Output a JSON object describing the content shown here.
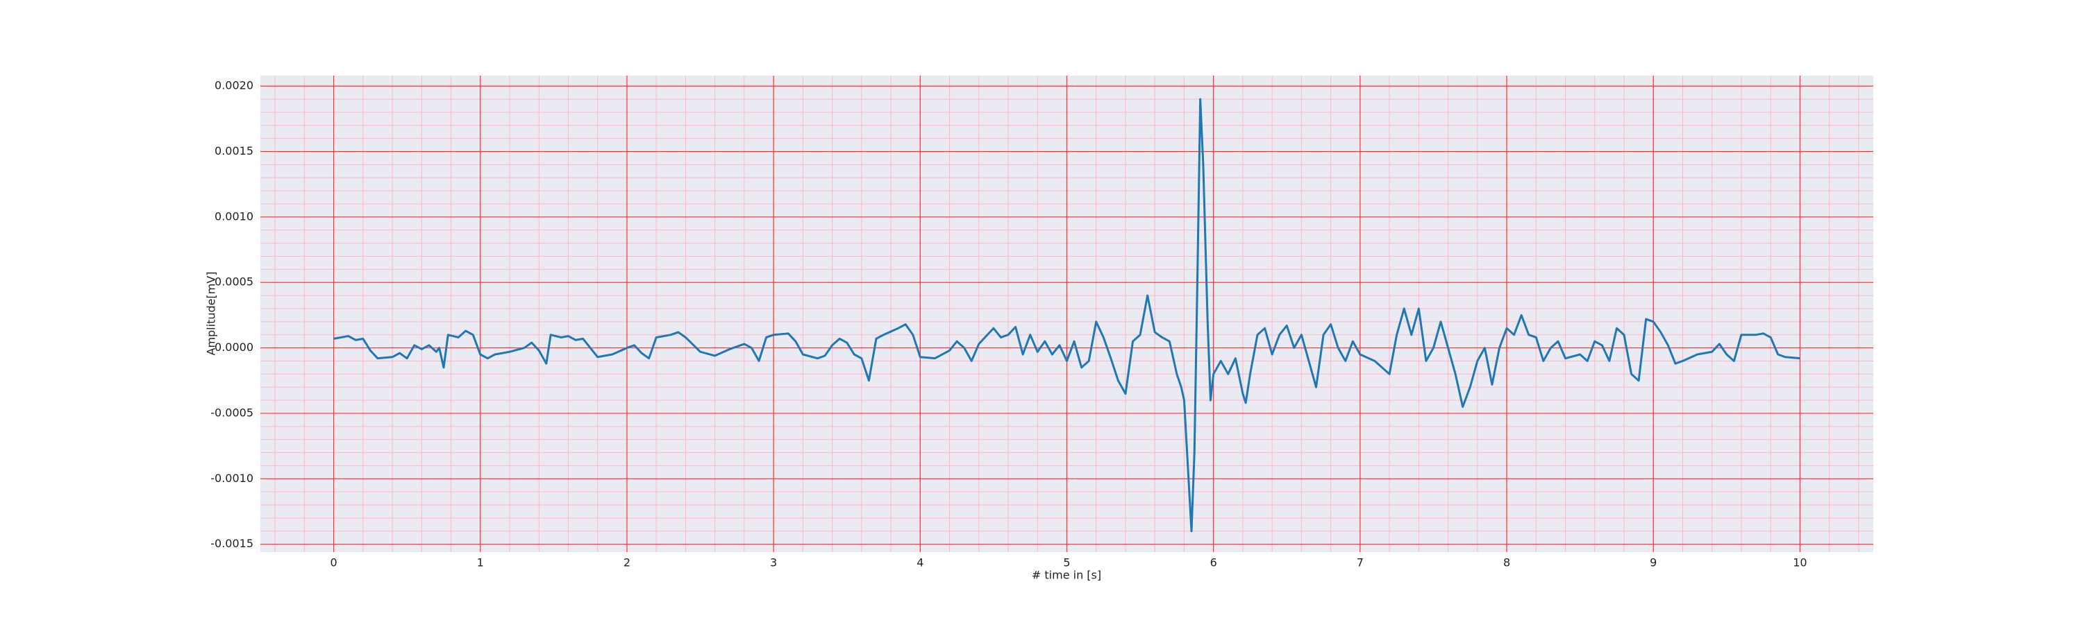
{
  "chart_data": {
    "type": "line",
    "xlabel": "# time in [s]",
    "ylabel": "Amplitude[mV]",
    "x": [
      0,
      0.1,
      0.15,
      0.2,
      0.25,
      0.3,
      0.4,
      0.45,
      0.5,
      0.55,
      0.6,
      0.65,
      0.7,
      0.72,
      0.75,
      0.78,
      0.85,
      0.9,
      0.95,
      1.0,
      1.05,
      1.1,
      1.2,
      1.3,
      1.35,
      1.4,
      1.45,
      1.48,
      1.55,
      1.6,
      1.65,
      1.7,
      1.75,
      1.8,
      1.9,
      2.0,
      2.05,
      2.1,
      2.15,
      2.2,
      2.3,
      2.35,
      2.4,
      2.5,
      2.6,
      2.7,
      2.8,
      2.85,
      2.9,
      2.95,
      3.0,
      3.1,
      3.15,
      3.2,
      3.3,
      3.35,
      3.4,
      3.45,
      3.5,
      3.55,
      3.6,
      3.65,
      3.7,
      3.75,
      3.85,
      3.9,
      3.95,
      4.0,
      4.1,
      4.2,
      4.25,
      4.3,
      4.35,
      4.4,
      4.5,
      4.55,
      4.6,
      4.65,
      4.7,
      4.75,
      4.8,
      4.85,
      4.9,
      4.95,
      5.0,
      5.05,
      5.1,
      5.15,
      5.2,
      5.25,
      5.3,
      5.35,
      5.4,
      5.45,
      5.5,
      5.55,
      5.6,
      5.65,
      5.7,
      5.75,
      5.78,
      5.8,
      5.83,
      5.85,
      5.87,
      5.89,
      5.91,
      5.93,
      5.96,
      5.98,
      6.0,
      6.05,
      6.1,
      6.15,
      6.2,
      6.22,
      6.25,
      6.3,
      6.35,
      6.4,
      6.45,
      6.5,
      6.55,
      6.6,
      6.65,
      6.7,
      6.75,
      6.8,
      6.85,
      6.9,
      6.95,
      7.0,
      7.1,
      7.2,
      7.25,
      7.3,
      7.35,
      7.4,
      7.45,
      7.5,
      7.55,
      7.6,
      7.65,
      7.7,
      7.75,
      7.8,
      7.85,
      7.9,
      7.95,
      8.0,
      8.05,
      8.1,
      8.15,
      8.2,
      8.25,
      8.3,
      8.35,
      8.4,
      8.5,
      8.55,
      8.6,
      8.65,
      8.7,
      8.75,
      8.8,
      8.85,
      8.9,
      8.95,
      9.0,
      9.05,
      9.1,
      9.15,
      9.2,
      9.3,
      9.4,
      9.45,
      9.5,
      9.55,
      9.6,
      9.7,
      9.75,
      9.8,
      9.85,
      9.9,
      10.0
    ],
    "series": [
      {
        "color": "#1f77b4",
        "values": [
          7e-05,
          9e-05,
          6e-05,
          7e-05,
          -2e-05,
          -8e-05,
          -7e-05,
          -4e-05,
          -8e-05,
          2e-05,
          -1e-05,
          2e-05,
          -3e-05,
          0.0,
          -0.00015,
          0.0001,
          8e-05,
          0.00013,
          0.0001,
          -5e-05,
          -8e-05,
          -5e-05,
          -3e-05,
          0.0,
          4e-05,
          -2e-05,
          -0.00012,
          0.0001,
          8e-05,
          9e-05,
          6e-05,
          7e-05,
          0.0,
          -7e-05,
          -5e-05,
          0.0,
          2e-05,
          -4e-05,
          -8e-05,
          8e-05,
          0.0001,
          0.00012,
          8e-05,
          -3e-05,
          -6e-05,
          -1e-05,
          3e-05,
          0.0,
          -0.0001,
          8e-05,
          0.0001,
          0.00011,
          5e-05,
          -5e-05,
          -8e-05,
          -6e-05,
          2e-05,
          7e-05,
          4e-05,
          -5e-05,
          -8e-05,
          -0.00025,
          7e-05,
          0.0001,
          0.00015,
          0.00018,
          0.0001,
          -7e-05,
          -8e-05,
          -2e-05,
          5e-05,
          0.0,
          -0.0001,
          3e-05,
          0.00015,
          8e-05,
          0.0001,
          0.00016,
          -5e-05,
          0.0001,
          -3e-05,
          5e-05,
          -5e-05,
          2e-05,
          -0.0001,
          5e-05,
          -0.00015,
          -0.0001,
          0.0002,
          8e-05,
          -8e-05,
          -0.00025,
          -0.00035,
          5e-05,
          0.0001,
          0.0004,
          0.00012,
          8e-05,
          5e-05,
          -0.0002,
          -0.0003,
          -0.0004,
          -0.001,
          -0.0014,
          -0.0008,
          0.0005,
          0.0019,
          0.0014,
          0.0002,
          -0.0004,
          -0.0002,
          -0.0001,
          -0.0002,
          -8e-05,
          -0.00035,
          -0.00042,
          -0.0002,
          0.0001,
          0.00015,
          -5e-05,
          0.0001,
          0.00017,
          0.0,
          0.0001,
          -0.0001,
          -0.0003,
          0.0001,
          0.00018,
          0.0,
          -0.0001,
          5e-05,
          -5e-05,
          -0.0001,
          -0.0002,
          0.0001,
          0.0003,
          0.0001,
          0.0003,
          -0.0001,
          0.0,
          0.0002,
          0.0,
          -0.0002,
          -0.00045,
          -0.0003,
          -0.0001,
          0.0,
          -0.00028,
          0.0,
          0.00015,
          0.0001,
          0.00025,
          0.0001,
          8e-05,
          -0.0001,
          0.0,
          5e-05,
          -8e-05,
          -5e-05,
          -0.0001,
          5e-05,
          2e-05,
          -0.0001,
          0.00015,
          0.0001,
          -0.0002,
          -0.00025,
          0.00022,
          0.0002,
          0.00012,
          2e-05,
          -0.00012,
          -0.0001,
          -5e-05,
          -3e-05,
          3e-05,
          -5e-05,
          -0.0001,
          0.0001,
          0.0001,
          0.00011,
          8e-05,
          -5e-05,
          -7e-05,
          -8e-05
        ]
      }
    ],
    "xlim": [
      -0.5,
      10.5
    ],
    "ylim": [
      -0.00156,
      0.00208
    ],
    "xticks": [
      0,
      1,
      2,
      3,
      4,
      5,
      6,
      7,
      8,
      9,
      10
    ],
    "yticks": [
      {
        "value": -0.0015,
        "label": "-0.0015"
      },
      {
        "value": -0.001,
        "label": "-0.0010"
      },
      {
        "value": -0.0005,
        "label": "-0.0005"
      },
      {
        "value": 0,
        "label": "0.0000"
      },
      {
        "value": 0.0005,
        "label": "0.0005"
      },
      {
        "value": 0.001,
        "label": "0.0010"
      },
      {
        "value": 0.0015,
        "label": "0.0015"
      },
      {
        "value": 0.002,
        "label": "0.0020"
      }
    ],
    "grid": true,
    "grid_color": "#ff3030",
    "minor_grid_color": "#ffb6c8",
    "xminor": 0.2,
    "yminor": 0.0001,
    "background": "#eaeaf2"
  }
}
